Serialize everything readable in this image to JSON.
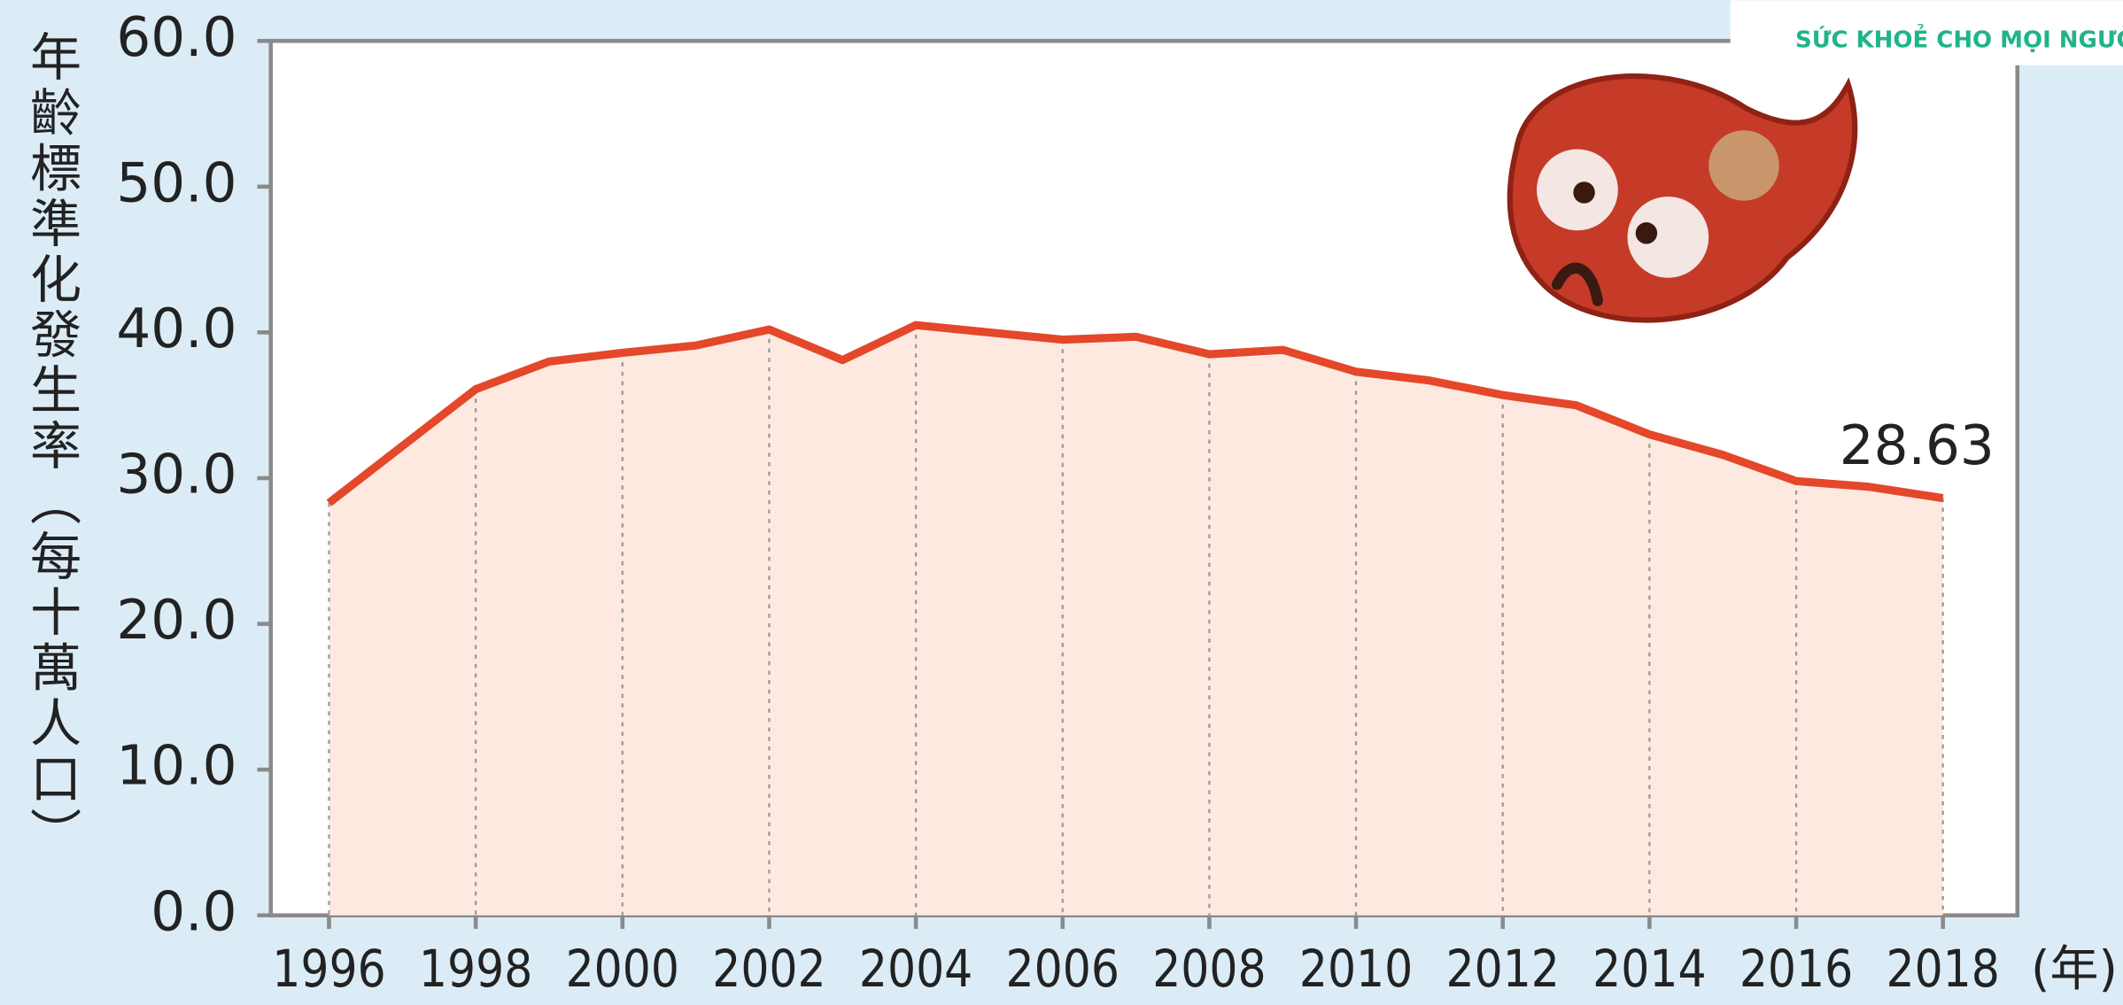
{
  "chart_data": {
    "type": "line",
    "y_label": "年齡標準化發生率（每十萬人口）",
    "x_unit_label": "(年)",
    "x": [
      1996,
      1997,
      1998,
      1999,
      2000,
      2001,
      2002,
      2003,
      2004,
      2005,
      2006,
      2007,
      2008,
      2009,
      2010,
      2011,
      2012,
      2013,
      2014,
      2015,
      2016,
      2017,
      2018
    ],
    "series": [
      {
        "color": "#e4472a",
        "fill": "#fde9e0",
        "values": [
          28.3,
          32.2,
          36.1,
          38.0,
          38.6,
          39.1,
          40.2,
          38.1,
          40.5,
          40.0,
          39.5,
          39.7,
          38.5,
          38.8,
          37.3,
          36.7,
          35.7,
          35.0,
          33.0,
          31.6,
          29.8,
          29.4,
          28.63
        ]
      }
    ],
    "labeled_point": 22,
    "xlim": [
      1996,
      2018
    ],
    "xticks": [
      1996,
      1998,
      2000,
      2002,
      2004,
      2006,
      2008,
      2010,
      2012,
      2014,
      2016,
      2018
    ],
    "ylim": [
      0,
      60
    ],
    "yticks": [
      {
        "value": 0,
        "label": "0.0"
      },
      {
        "value": 10,
        "label": "10.0"
      },
      {
        "value": 20,
        "label": "20.0"
      },
      {
        "value": 30,
        "label": "30.0"
      },
      {
        "value": 40,
        "label": "40.0"
      },
      {
        "value": 50,
        "label": "50.0"
      },
      {
        "value": 60,
        "label": "60.0"
      }
    ],
    "grid": true,
    "watermark": "SỨC KHOẺ CHO MỌI NGƯỜI"
  }
}
